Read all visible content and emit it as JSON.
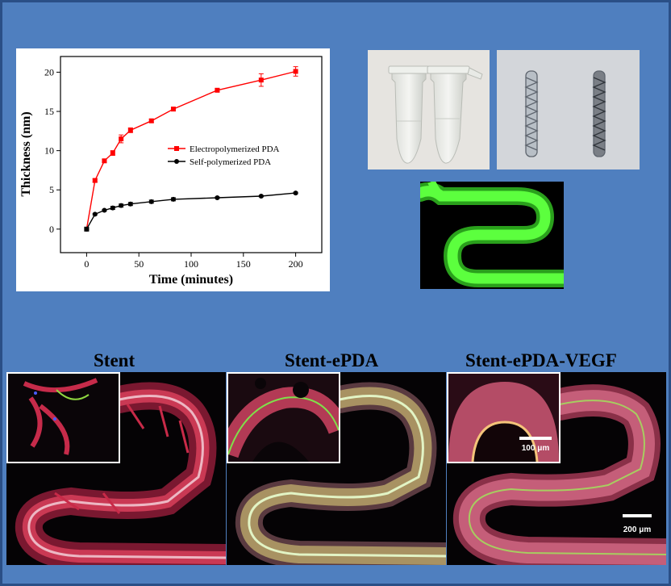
{
  "chart_data": {
    "type": "line",
    "xlabel": "Time (minutes)",
    "ylabel": "Thickness (nm)",
    "xlim": [
      -25,
      225
    ],
    "ylim": [
      -3,
      22
    ],
    "xticks": [
      0,
      50,
      100,
      150,
      200
    ],
    "yticks": [
      0,
      5,
      10,
      15,
      20
    ],
    "grid": false,
    "legend_position": "center-right",
    "series": [
      {
        "name": "Electropolymerized PDA",
        "color": "#ff0000",
        "marker": "square",
        "x": [
          0,
          8,
          17,
          25,
          33,
          42,
          62,
          83,
          125,
          167,
          200
        ],
        "y": [
          0,
          6.2,
          8.7,
          9.7,
          11.5,
          12.6,
          13.8,
          15.3,
          17.7,
          19.0,
          20.1
        ],
        "err": [
          0,
          0.2,
          0.2,
          0.3,
          0.5,
          0.3,
          0.2,
          0.2,
          0.2,
          0.8,
          0.6
        ]
      },
      {
        "name": "Self-polymerized PDA",
        "color": "#000000",
        "marker": "circle",
        "x": [
          0,
          8,
          17,
          25,
          33,
          42,
          62,
          83,
          125,
          167,
          200
        ],
        "y": [
          0,
          1.9,
          2.4,
          2.7,
          3.0,
          3.2,
          3.5,
          3.8,
          4.0,
          4.2,
          4.6
        ],
        "err": [
          0,
          0.1,
          0.1,
          0.2,
          0.2,
          0.2,
          0.2,
          0.2,
          0.1,
          0.1,
          0.1
        ]
      }
    ]
  },
  "panels": {
    "stent": "Stent",
    "stent_epda": "Stent-ePDA",
    "stent_epda_vegf": "Stent-ePDA-VEGF"
  },
  "scale_bars": {
    "inset": "100 μm",
    "main": "200 μm"
  },
  "colors": {
    "background": "#4f7fbf",
    "fluor_green": "#4fff3a",
    "cell_red": "#d8284a",
    "nucleus_blue": "#4a5cff"
  }
}
